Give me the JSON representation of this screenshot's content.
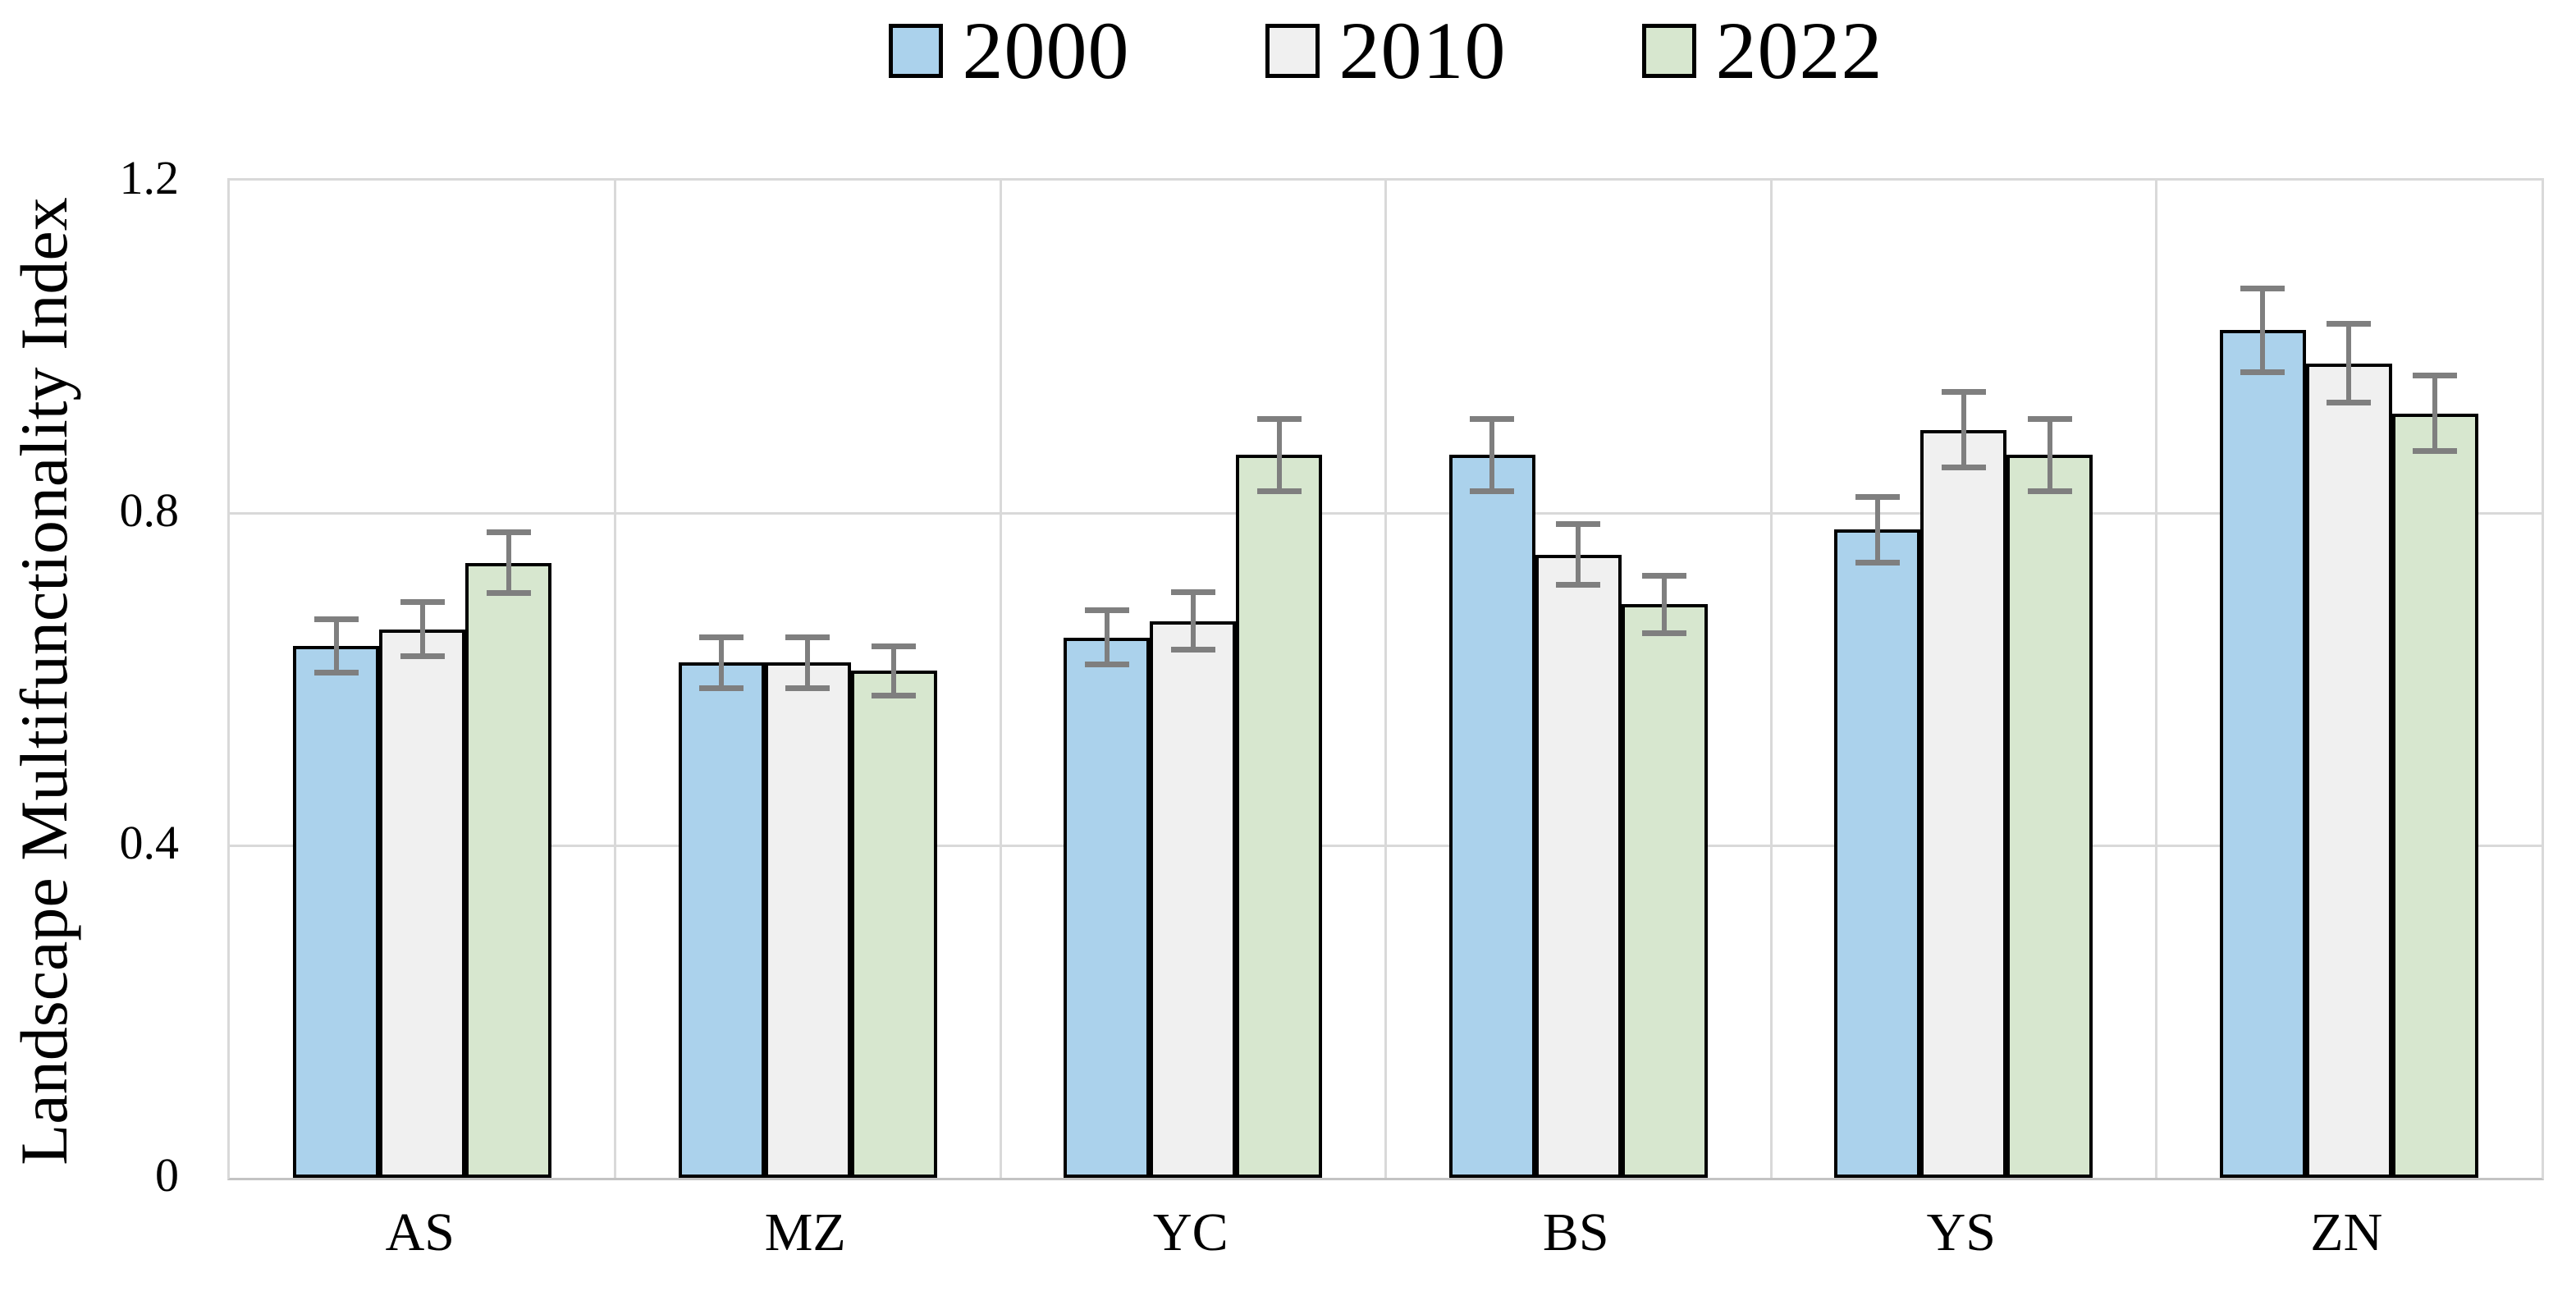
{
  "chart_data": {
    "type": "bar",
    "title": "",
    "xlabel": "",
    "ylabel": "Landscape Multifunctionality Index",
    "ylim": [
      0,
      1.2
    ],
    "ytick_labels": [
      "0",
      "0.4",
      "0.8",
      "1.2"
    ],
    "ytick_values": [
      0,
      0.4,
      0.8,
      1.2
    ],
    "grid": {
      "horizontal_values": [
        0.4,
        0.8
      ],
      "vertical_between_categories": true,
      "color": "#d9d9d9"
    },
    "legend_position": "top-center",
    "categories": [
      "AS",
      "MZ",
      "YC",
      "BS",
      "YS",
      "ZN"
    ],
    "series": [
      {
        "name": "2000",
        "fill": "#abd2ec",
        "values": [
          0.64,
          0.62,
          0.65,
          0.87,
          0.78,
          1.02
        ],
        "errors": [
          0.033,
          0.031,
          0.033,
          0.044,
          0.04,
          0.051
        ]
      },
      {
        "name": "2010",
        "fill": "#f0f0f0",
        "values": [
          0.66,
          0.62,
          0.67,
          0.75,
          0.9,
          0.98
        ],
        "errors": [
          0.033,
          0.031,
          0.035,
          0.037,
          0.046,
          0.048
        ]
      },
      {
        "name": "2022",
        "fill": "#d7e7cf",
        "values": [
          0.74,
          0.61,
          0.87,
          0.69,
          0.87,
          0.92
        ],
        "errors": [
          0.037,
          0.03,
          0.044,
          0.035,
          0.044,
          0.046
        ]
      }
    ],
    "bar_border_color": "#000000",
    "error_bar_color": "#7f7f7f"
  }
}
